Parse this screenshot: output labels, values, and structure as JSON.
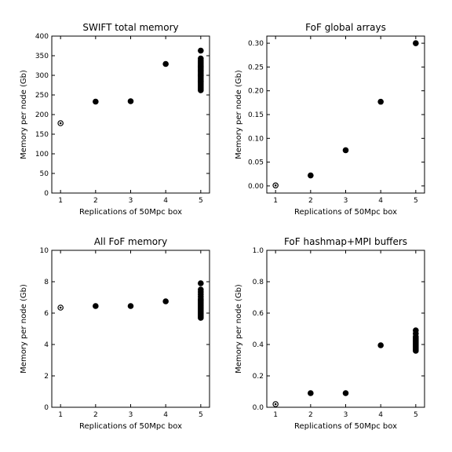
{
  "chart_data": [
    {
      "type": "scatter",
      "title": "SWIFT total memory",
      "xlabel": "Replications of 50Mpc box",
      "ylabel": "Memory per node (Gb)",
      "xlim": [
        0.75,
        5.25
      ],
      "ylim": [
        0,
        400
      ],
      "xticks": [
        1,
        2,
        3,
        4,
        5
      ],
      "yticks": [
        0,
        50,
        100,
        150,
        200,
        250,
        300,
        350,
        400
      ],
      "grid": false,
      "x": [
        1,
        2,
        3,
        4,
        5,
        5,
        5,
        5,
        5,
        5,
        5,
        5,
        5,
        5,
        5,
        5,
        5,
        5,
        5,
        5,
        5,
        5,
        5,
        5,
        5,
        5,
        5,
        5,
        5,
        5
      ],
      "y": [
        178,
        233,
        234,
        329,
        363,
        343,
        338,
        334,
        330,
        326,
        322,
        318,
        314,
        310,
        306,
        302,
        298,
        294,
        290,
        286,
        282,
        278,
        274,
        270,
        266,
        262,
        300,
        312,
        322,
        285
      ]
    },
    {
      "type": "scatter",
      "title": "FoF global arrays",
      "xlabel": "Replications of 50Mpc box",
      "ylabel": "Memory per node (Gb)",
      "xlim": [
        0.75,
        5.25
      ],
      "ylim": [
        -0.015,
        0.315
      ],
      "xticks": [
        1,
        2,
        3,
        4,
        5
      ],
      "yticks": [
        0.0,
        0.05,
        0.1,
        0.15,
        0.2,
        0.25,
        0.3
      ],
      "ytick_labels": [
        "0.00",
        "0.05",
        "0.10",
        "0.15",
        "0.20",
        "0.25",
        "0.30"
      ],
      "grid": false,
      "x": [
        1,
        2,
        3,
        4,
        5
      ],
      "y": [
        0.001,
        0.022,
        0.075,
        0.177,
        0.3
      ]
    },
    {
      "type": "scatter",
      "title": "All FoF memory",
      "xlabel": "Replications of 50Mpc box",
      "ylabel": "Memory per node (Gb)",
      "xlim": [
        0.75,
        5.25
      ],
      "ylim": [
        0,
        10
      ],
      "xticks": [
        1,
        2,
        3,
        4,
        5
      ],
      "yticks": [
        0,
        2,
        4,
        6,
        8,
        10
      ],
      "grid": false,
      "x": [
        1,
        2,
        3,
        4,
        5,
        5,
        5,
        5,
        5,
        5,
        5,
        5,
        5,
        5,
        5,
        5,
        5,
        5,
        5,
        5,
        5,
        5
      ],
      "y": [
        6.35,
        6.45,
        6.45,
        6.75,
        7.9,
        7.5,
        7.35,
        7.2,
        7.05,
        6.9,
        6.8,
        6.7,
        6.6,
        6.5,
        6.4,
        6.3,
        6.2,
        6.1,
        6.0,
        5.9,
        5.8,
        5.7
      ]
    },
    {
      "type": "scatter",
      "title": "FoF hashmap+MPI buffers",
      "xlabel": "Replications of 50Mpc box",
      "ylabel": "Memory per node (Gb)",
      "xlim": [
        0.75,
        5.25
      ],
      "ylim": [
        0,
        1.0
      ],
      "xticks": [
        1,
        2,
        3,
        4,
        5
      ],
      "yticks": [
        0.0,
        0.2,
        0.4,
        0.6,
        0.8,
        1.0
      ],
      "ytick_labels": [
        "0.0",
        "0.2",
        "0.4",
        "0.6",
        "0.8",
        "1.0"
      ],
      "grid": false,
      "x": [
        1,
        2,
        3,
        4,
        5,
        5,
        5,
        5,
        5,
        5,
        5,
        5,
        5,
        5,
        5,
        5
      ],
      "y": [
        0.02,
        0.09,
        0.09,
        0.395,
        0.49,
        0.47,
        0.45,
        0.44,
        0.43,
        0.42,
        0.41,
        0.4,
        0.39,
        0.38,
        0.37,
        0.36
      ]
    }
  ]
}
